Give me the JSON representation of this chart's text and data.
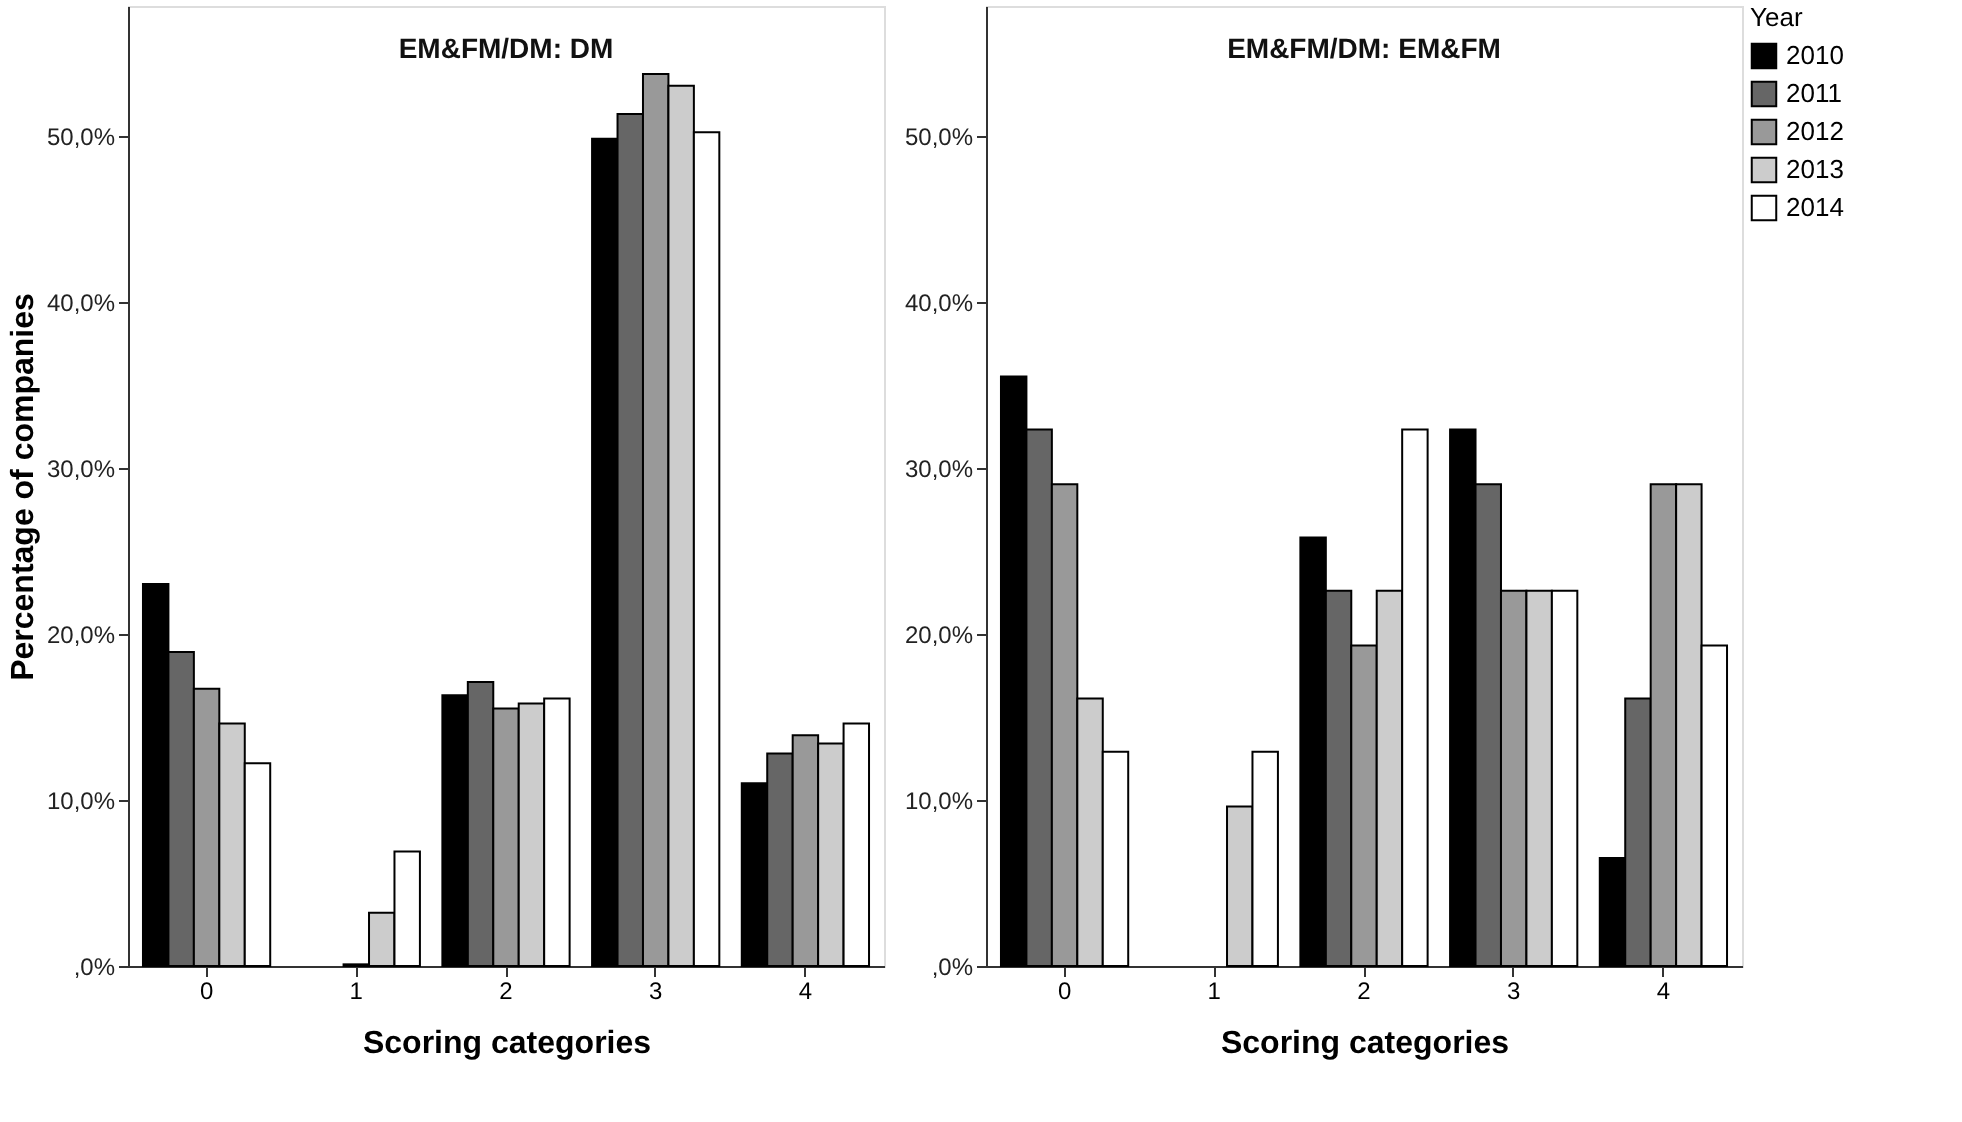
{
  "chart_data": [
    {
      "type": "bar",
      "title": "EM&FM/DM: DM",
      "xlabel": "Scoring categories",
      "ylabel": "Percentage of companies",
      "categories": [
        "0",
        "1",
        "2",
        "3",
        "4"
      ],
      "series": [
        {
          "color": "#000000",
          "values": [
            23.0,
            null,
            16.3,
            49.8,
            11.0
          ]
        },
        {
          "color": "#666666",
          "values": [
            18.9,
            null,
            17.1,
            51.3,
            12.8
          ]
        },
        {
          "color": "#999999",
          "values": [
            16.7,
            0.1,
            15.5,
            53.7,
            13.9
          ]
        },
        {
          "color": "#cccccc",
          "values": [
            14.6,
            3.2,
            15.8,
            53.0,
            13.4
          ]
        },
        {
          "color": "#ffffff",
          "values": [
            12.2,
            6.9,
            16.1,
            50.2,
            14.6
          ]
        }
      ],
      "ylim": [
        0,
        57.8
      ],
      "yticks": [
        {
          "value": 0,
          "label": ",0%"
        },
        {
          "value": 10,
          "label": "10,0%"
        },
        {
          "value": 20,
          "label": "20,0%"
        },
        {
          "value": 30,
          "label": "30,0%"
        },
        {
          "value": 40,
          "label": "40,0%"
        },
        {
          "value": 50,
          "label": "50,0%"
        }
      ],
      "grid": false,
      "legend": false
    },
    {
      "type": "bar",
      "title": "EM&FM/DM: EM&FM",
      "xlabel": "Scoring categories",
      "legend_title": "Year",
      "categories": [
        "0",
        "1",
        "2",
        "3",
        "4"
      ],
      "series": [
        {
          "name": "2010",
          "color": "#000000",
          "values": [
            35.5,
            null,
            25.8,
            32.3,
            6.5
          ]
        },
        {
          "name": "2011",
          "color": "#666666",
          "values": [
            32.3,
            null,
            22.6,
            29.0,
            16.1
          ]
        },
        {
          "name": "2012",
          "color": "#999999",
          "values": [
            29.0,
            null,
            19.3,
            22.6,
            29.0
          ]
        },
        {
          "name": "2013",
          "color": "#cccccc",
          "values": [
            16.1,
            9.6,
            22.6,
            22.6,
            29.0
          ]
        },
        {
          "name": "2014",
          "color": "#ffffff",
          "values": [
            12.9,
            12.9,
            32.3,
            22.6,
            19.3
          ]
        }
      ],
      "ylim": [
        0,
        57.8
      ],
      "yticks": [
        {
          "value": 0,
          "label": ",0%"
        },
        {
          "value": 10,
          "label": "10,0%"
        },
        {
          "value": 20,
          "label": "20,0%"
        },
        {
          "value": 30,
          "label": "30,0%"
        },
        {
          "value": 40,
          "label": "40,0%"
        },
        {
          "value": 50,
          "label": "50,0%"
        }
      ],
      "grid": false,
      "legend": "top right"
    }
  ]
}
